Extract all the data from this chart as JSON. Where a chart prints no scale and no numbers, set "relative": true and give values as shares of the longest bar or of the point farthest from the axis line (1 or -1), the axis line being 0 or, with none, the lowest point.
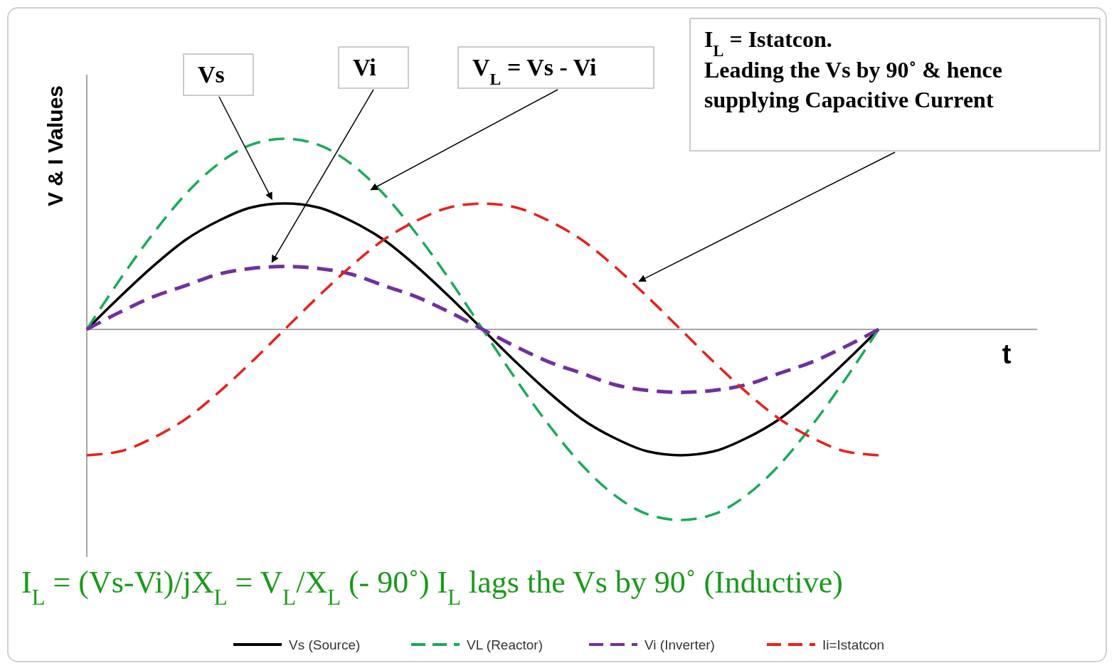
{
  "chart_data": {
    "type": "line",
    "relative": true,
    "ylabel": "V & I Values",
    "xlabel": "t",
    "legend": "bottom",
    "categories": [
      null,
      null,
      null,
      null,
      null,
      null,
      null,
      null,
      null,
      null,
      null,
      null,
      null,
      null,
      null,
      null,
      null,
      null,
      null,
      null,
      null,
      null,
      null,
      null,
      null
    ],
    "series": [
      {
        "name": "Vs (Source)",
        "color": "#000000",
        "line_style": "solid",
        "values": [
          0,
          0.17,
          0.33,
          0.47,
          0.57,
          0.64,
          0.66,
          0.64,
          0.57,
          0.47,
          0.33,
          0.17,
          0,
          -0.17,
          -0.33,
          -0.47,
          -0.57,
          -0.64,
          -0.66,
          -0.64,
          -0.57,
          -0.47,
          -0.33,
          -0.17,
          0
        ]
      },
      {
        "name": "VL (Reactor)",
        "color": "#1aaa5a",
        "line_style": "dashed",
        "values": [
          0,
          0.26,
          0.5,
          0.71,
          0.87,
          0.97,
          1,
          0.97,
          0.87,
          0.71,
          0.5,
          0.26,
          0,
          -0.26,
          -0.5,
          -0.71,
          -0.87,
          -0.97,
          -1,
          -0.97,
          -0.87,
          -0.71,
          -0.5,
          -0.26,
          0
        ]
      },
      {
        "name": "Vi (Inverter)",
        "color": "#7030a0",
        "line_style": "dashed",
        "values": [
          0,
          0.09,
          0.17,
          0.23,
          0.29,
          0.32,
          0.33,
          0.32,
          0.29,
          0.23,
          0.17,
          0.09,
          0,
          -0.09,
          -0.17,
          -0.23,
          -0.29,
          -0.32,
          -0.33,
          -0.32,
          -0.29,
          -0.23,
          -0.17,
          -0.09,
          0
        ]
      },
      {
        "name": "Ii=Istatcon",
        "color": "#e8201c",
        "line_style": "dashed",
        "values": [
          -0.66,
          -0.64,
          -0.57,
          -0.47,
          -0.33,
          -0.17,
          0,
          0.17,
          0.33,
          0.47,
          0.57,
          0.64,
          0.66,
          0.64,
          0.57,
          0.47,
          0.33,
          0.17,
          0,
          -0.17,
          -0.33,
          -0.47,
          -0.57,
          -0.64,
          -0.66
        ]
      }
    ],
    "annotations": [
      "Vs",
      "Vi",
      "V$_{L}$ = Vs - Vi",
      "I$_{L}$ = Istatcon.",
      "Leading the Vs by 90˚ & hence supplying Capacitive Current",
      "I$_{L}$ = (Vs-Vi)/jX$_{L}$ = V$_{L}$/X$_{L}$ (- 90˚) I$_{L}$ lags the Vs by 90˚ (Inductive)"
    ]
  }
}
